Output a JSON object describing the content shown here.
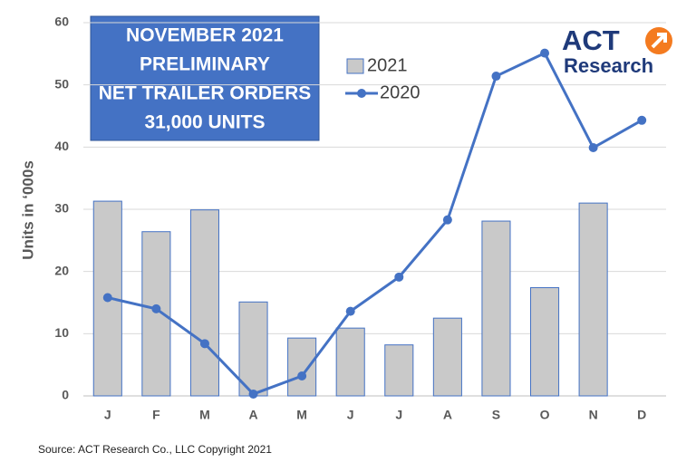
{
  "chart_data": {
    "type": "bar",
    "title": [
      "NOVEMBER 2021",
      "PRELIMINARY",
      "NET TRAILER ORDERS",
      "31,000 UNITS"
    ],
    "y_label": "Units in ‘000s",
    "categories": [
      "J",
      "F",
      "M",
      "A",
      "M",
      "J",
      "J",
      "A",
      "S",
      "O",
      "N",
      "D"
    ],
    "series": [
      {
        "name": "2021",
        "type": "bar",
        "color": "#c9c9c9",
        "values": [
          31.3,
          26.4,
          29.9,
          15.1,
          9.3,
          10.9,
          8.2,
          12.5,
          28.1,
          17.4,
          31.0,
          null
        ]
      },
      {
        "name": "2020",
        "type": "line",
        "color": "#4472c4",
        "values": [
          15.8,
          14.0,
          8.4,
          0.3,
          3.2,
          13.6,
          19.1,
          28.3,
          51.4,
          55.1,
          39.9,
          44.3
        ]
      }
    ],
    "ylim": [
      0,
      60
    ],
    "yticks": [
      0,
      10,
      20,
      30,
      40,
      50,
      60
    ],
    "grid": true
  },
  "logo": {
    "line1": "ACT",
    "line2": "Research"
  },
  "source": "Source: ACT Research Co., LLC  Copyright 2021"
}
